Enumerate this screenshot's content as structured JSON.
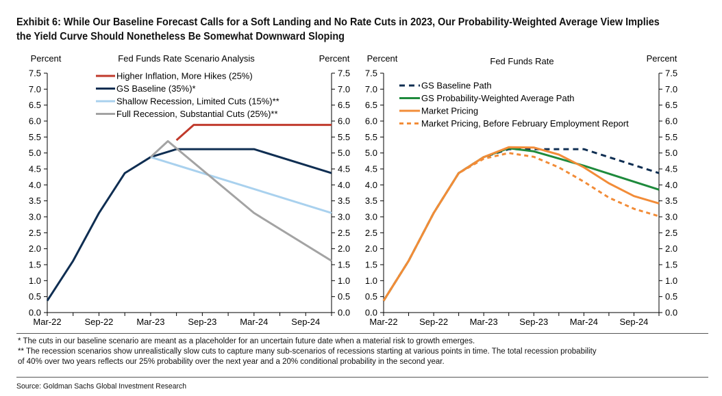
{
  "title_lines": [
    "Exhibit 6: While Our Baseline Forecast Calls for a Soft Landing and No Rate Cuts in 2023, Our Probability-Weighted Average View Implies",
    "the Yield Curve Should Nonetheless Be Somewhat Downward Sloping"
  ],
  "footnotes": [
    "* The cuts in our baseline scenario are meant as a placeholder for an uncertain future date when a material risk to growth emerges.",
    "** The recession scenarios show unrealistically slow cuts to capture many sub-scenarios of recessions starting at various points in time.  The total recession probability",
    "of 40% over two years reflects our 25% probability over the next year and a 20% conditional probability in the second year."
  ],
  "source": "Source: Goldman Sachs Global Investment Research",
  "chart_data": [
    {
      "type": "line",
      "title": "Fed Funds Rate Scenario Analysis",
      "ylabel_left": "Percent",
      "ylabel_right": "Percent",
      "ylim": [
        0,
        7.5
      ],
      "yticks": [
        "0.0",
        "0.5",
        "1.0",
        "1.5",
        "2.0",
        "2.5",
        "3.0",
        "3.5",
        "4.0",
        "4.5",
        "5.0",
        "5.5",
        "6.0",
        "6.5",
        "7.0",
        "7.5"
      ],
      "xlim": [
        0,
        33
      ],
      "xticks": [
        {
          "label": "Mar-22",
          "x": 0
        },
        {
          "label": "Sep-22",
          "x": 6
        },
        {
          "label": "Mar-23",
          "x": 12
        },
        {
          "label": "Sep-23",
          "x": 18
        },
        {
          "label": "Mar-24",
          "x": 24
        },
        {
          "label": "Sep-24",
          "x": 30
        }
      ],
      "legend_position": "top-left",
      "series": [
        {
          "name": "Higher Inflation, More Hikes (25%)",
          "color": "#c0392b",
          "dash": "",
          "points": [
            [
              15,
              5.4
            ],
            [
              17,
              5.88
            ],
            [
              33,
              5.88
            ]
          ]
        },
        {
          "name": "GS Baseline (35%)*",
          "color": "#0f2e52",
          "dash": "",
          "points": [
            [
              0,
              0.37
            ],
            [
              3,
              1.62
            ],
            [
              6,
              3.12
            ],
            [
              9,
              4.37
            ],
            [
              12,
              4.87
            ],
            [
              15,
              5.12
            ],
            [
              21,
              5.12
            ],
            [
              24,
              5.12
            ],
            [
              33,
              4.37
            ]
          ]
        },
        {
          "name": "Shallow Recession, Limited Cuts (15%)**",
          "color": "#a9d1ee",
          "dash": "",
          "points": [
            [
              12,
              4.87
            ],
            [
              33,
              3.12
            ]
          ]
        },
        {
          "name": "Full Recession, Substantial Cuts (25%)**",
          "color": "#a3a3a3",
          "dash": "",
          "points": [
            [
              12,
              4.87
            ],
            [
              14,
              5.37
            ],
            [
              24,
              3.12
            ],
            [
              33,
              1.62
            ]
          ]
        }
      ]
    },
    {
      "type": "line",
      "title": "Fed Funds Rate",
      "ylabel_left": "Percent",
      "ylabel_right": "Percent",
      "ylim": [
        0,
        7.5
      ],
      "yticks": [
        "0.0",
        "0.5",
        "1.0",
        "1.5",
        "2.0",
        "2.5",
        "3.0",
        "3.5",
        "4.0",
        "4.5",
        "5.0",
        "5.5",
        "6.0",
        "6.5",
        "7.0",
        "7.5"
      ],
      "xlim": [
        0,
        33
      ],
      "xticks": [
        {
          "label": "Mar-22",
          "x": 0
        },
        {
          "label": "Sep-22",
          "x": 6
        },
        {
          "label": "Mar-23",
          "x": 12
        },
        {
          "label": "Sep-23",
          "x": 18
        },
        {
          "label": "Mar-24",
          "x": 24
        },
        {
          "label": "Sep-24",
          "x": 30
        }
      ],
      "legend_position": "top-left",
      "series": [
        {
          "name": "GS Baseline Path",
          "color": "#0f2e52",
          "dash": "8,6",
          "points": [
            [
              0,
              0.37
            ],
            [
              3,
              1.62
            ],
            [
              6,
              3.12
            ],
            [
              9,
              4.37
            ],
            [
              12,
              4.87
            ],
            [
              15,
              5.12
            ],
            [
              24,
              5.12
            ],
            [
              33,
              4.37
            ]
          ]
        },
        {
          "name": "GS Probability-Weighted Average Path",
          "color": "#1e8a3c",
          "dash": "",
          "points": [
            [
              0,
              0.37
            ],
            [
              3,
              1.62
            ],
            [
              6,
              3.12
            ],
            [
              9,
              4.37
            ],
            [
              12,
              4.87
            ],
            [
              15,
              5.15
            ],
            [
              18,
              5.05
            ],
            [
              24,
              4.6
            ],
            [
              33,
              3.85
            ]
          ]
        },
        {
          "name": "Market Pricing",
          "color": "#f28c38",
          "dash": "",
          "points": [
            [
              0,
              0.37
            ],
            [
              3,
              1.62
            ],
            [
              6,
              3.12
            ],
            [
              9,
              4.37
            ],
            [
              12,
              4.87
            ],
            [
              15,
              5.18
            ],
            [
              18,
              5.17
            ],
            [
              21,
              4.95
            ],
            [
              24,
              4.55
            ],
            [
              27,
              4.05
            ],
            [
              30,
              3.65
            ],
            [
              33,
              3.42
            ]
          ]
        },
        {
          "name": "Market Pricing, Before February Employment Report",
          "color": "#f28c38",
          "dash": "6,5",
          "points": [
            [
              0,
              0.37
            ],
            [
              3,
              1.62
            ],
            [
              6,
              3.12
            ],
            [
              9,
              4.37
            ],
            [
              12,
              4.82
            ],
            [
              15,
              5.0
            ],
            [
              18,
              4.88
            ],
            [
              21,
              4.55
            ],
            [
              24,
              4.1
            ],
            [
              27,
              3.6
            ],
            [
              30,
              3.25
            ],
            [
              33,
              3.02
            ]
          ]
        }
      ]
    }
  ]
}
